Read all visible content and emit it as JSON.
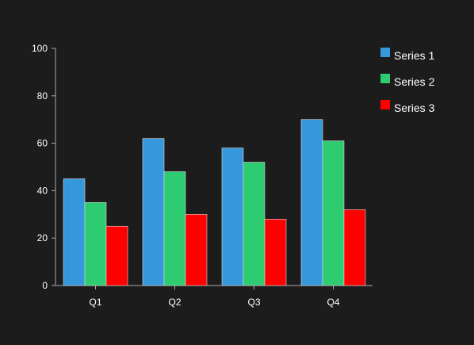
{
  "chart_data": {
    "type": "bar",
    "title": "",
    "xlabel": "",
    "ylabel": "",
    "categories": [
      "Q1",
      "Q2",
      "Q3",
      "Q4"
    ],
    "series": [
      {
        "name": "Series 1",
        "color": "#3498db",
        "values": [
          45,
          62,
          58,
          70
        ]
      },
      {
        "name": "Series 2",
        "color": "#2ecc71",
        "values": [
          35,
          48,
          52,
          61
        ]
      },
      {
        "name": "Series 3",
        "color": "#ff0000",
        "values": [
          25,
          30,
          28,
          32
        ]
      }
    ],
    "ylim": [
      0,
      100
    ],
    "yticks": [
      0,
      20,
      40,
      60,
      80,
      100
    ],
    "grid": false,
    "legend_position": "top-right",
    "colors": {
      "background": "#1c1c1c",
      "axis": "#aaaaaa",
      "text": "#ffffff"
    }
  }
}
